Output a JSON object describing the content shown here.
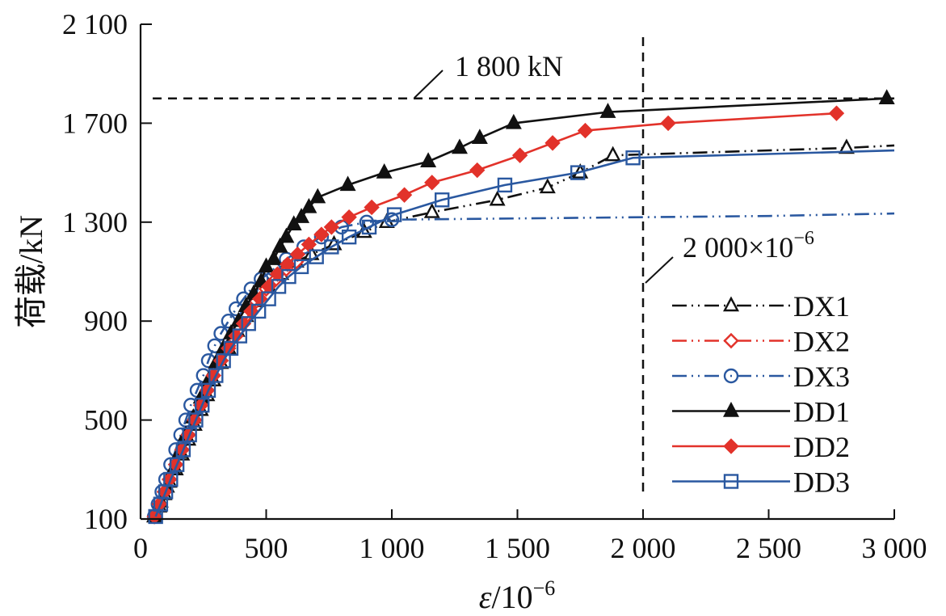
{
  "chart_data": {
    "type": "line",
    "title": "",
    "xlabel": "ε/10⁻⁶",
    "xlabel_parts": {
      "symbol": "ε",
      "base": "/10",
      "exp": "−6"
    },
    "ylabel": "荷载/kN",
    "xlim": [
      0,
      3000
    ],
    "ylim": [
      100,
      2100
    ],
    "x_ticks": [
      0,
      500,
      1000,
      1500,
      2000,
      2500,
      3000
    ],
    "x_tick_labels": [
      "0",
      "500",
      "1 000",
      "1 500",
      "2 000",
      "2 500",
      "3 000"
    ],
    "y_ticks": [
      100,
      500,
      900,
      1300,
      1700,
      2100
    ],
    "y_tick_labels": [
      "100",
      "500",
      "900",
      "1 300",
      "1 700",
      "2 100"
    ],
    "grid": false,
    "legend_position": "bottom-right",
    "reference_lines": [
      {
        "orientation": "horizontal",
        "value": 1800,
        "label": "1 800 kN"
      },
      {
        "orientation": "vertical",
        "value": 2000,
        "label_base": "2 000×10",
        "label_exp": "−6"
      }
    ],
    "series": [
      {
        "name": "DX1",
        "color": "#111111",
        "line": "dash-dot-dot",
        "marker": "triangle-open",
        "x": [
          55,
          75,
          95,
          115,
          140,
          165,
          190,
          215,
          240,
          265,
          290,
          320,
          350,
          385,
          420,
          460,
          510,
          560,
          620,
          680,
          770,
          890,
          980,
          1160,
          1420,
          1620,
          1750,
          1880,
          2810,
          3000
        ],
        "y": [
          110,
          150,
          200,
          250,
          300,
          360,
          420,
          480,
          540,
          600,
          660,
          730,
          790,
          860,
          920,
          980,
          1040,
          1090,
          1140,
          1170,
          1210,
          1260,
          1300,
          1340,
          1390,
          1440,
          1500,
          1570,
          1600,
          1610
        ]
      },
      {
        "name": "DX2",
        "color": "#e2322a",
        "line": "dash-dot-dot",
        "marker": "diamond-open",
        "x": [
          55,
          75,
          95,
          115,
          140,
          165,
          190,
          215,
          240,
          265,
          290,
          320,
          350,
          385,
          420,
          460,
          500,
          540,
          580,
          620
        ],
        "y": [
          110,
          160,
          210,
          260,
          320,
          380,
          440,
          500,
          560,
          620,
          680,
          740,
          800,
          860,
          920,
          980,
          1030,
          1070,
          1110,
          1140
        ]
      },
      {
        "name": "DX3",
        "color": "#2a58a0",
        "line": "dash-dot-dot",
        "marker": "circle-open",
        "x": [
          55,
          70,
          85,
          100,
          120,
          140,
          160,
          180,
          200,
          225,
          250,
          270,
          295,
          320,
          350,
          380,
          410,
          440,
          480,
          530,
          580,
          650,
          720,
          800,
          900,
          1000,
          1500,
          2000,
          2500,
          3000
        ],
        "y": [
          110,
          160,
          210,
          260,
          320,
          380,
          440,
          500,
          560,
          620,
          680,
          740,
          800,
          850,
          900,
          950,
          990,
          1030,
          1070,
          1110,
          1150,
          1200,
          1240,
          1280,
          1300,
          1310,
          1315,
          1320,
          1325,
          1335
        ]
      },
      {
        "name": "DD1",
        "color": "#111111",
        "line": "solid",
        "marker": "triangle-filled",
        "x": [
          55,
          80,
          105,
          130,
          155,
          180,
          210,
          240,
          270,
          300,
          330,
          360,
          390,
          420,
          450,
          480,
          500,
          530,
          555,
          580,
          610,
          640,
          670,
          705,
          825,
          970,
          1145,
          1270,
          1350,
          1485,
          1860,
          2970
        ],
        "y": [
          110,
          170,
          230,
          300,
          370,
          440,
          510,
          590,
          660,
          730,
          790,
          850,
          900,
          960,
          1010,
          1060,
          1120,
          1150,
          1200,
          1240,
          1290,
          1320,
          1360,
          1400,
          1450,
          1500,
          1545,
          1600,
          1640,
          1700,
          1745,
          1800
        ]
      },
      {
        "name": "DD2",
        "color": "#e2322a",
        "line": "solid",
        "marker": "diamond-filled",
        "x": [
          55,
          75,
          95,
          115,
          140,
          165,
          190,
          215,
          240,
          265,
          290,
          320,
          350,
          380,
          410,
          440,
          475,
          510,
          545,
          585,
          625,
          670,
          720,
          760,
          830,
          920,
          1050,
          1160,
          1340,
          1510,
          1640,
          1770,
          2100,
          2770
        ],
        "y": [
          110,
          160,
          210,
          260,
          320,
          380,
          440,
          500,
          560,
          620,
          680,
          740,
          790,
          840,
          890,
          940,
          990,
          1040,
          1090,
          1130,
          1170,
          1210,
          1250,
          1280,
          1320,
          1360,
          1410,
          1460,
          1510,
          1570,
          1620,
          1670,
          1700,
          1740
        ]
      },
      {
        "name": "DD3",
        "color": "#2a58a0",
        "line": "solid",
        "marker": "square-open",
        "x": [
          60,
          80,
          100,
          120,
          145,
          170,
          195,
          220,
          245,
          270,
          300,
          330,
          360,
          395,
          430,
          470,
          510,
          550,
          590,
          640,
          700,
          760,
          830,
          910,
          1010,
          1200,
          1450,
          1740,
          1960,
          3000
        ],
        "y": [
          110,
          160,
          210,
          260,
          320,
          380,
          440,
          500,
          560,
          620,
          680,
          740,
          790,
          840,
          890,
          940,
          990,
          1040,
          1080,
          1120,
          1160,
          1200,
          1240,
          1280,
          1330,
          1390,
          1450,
          1500,
          1560,
          1590
        ]
      }
    ]
  }
}
